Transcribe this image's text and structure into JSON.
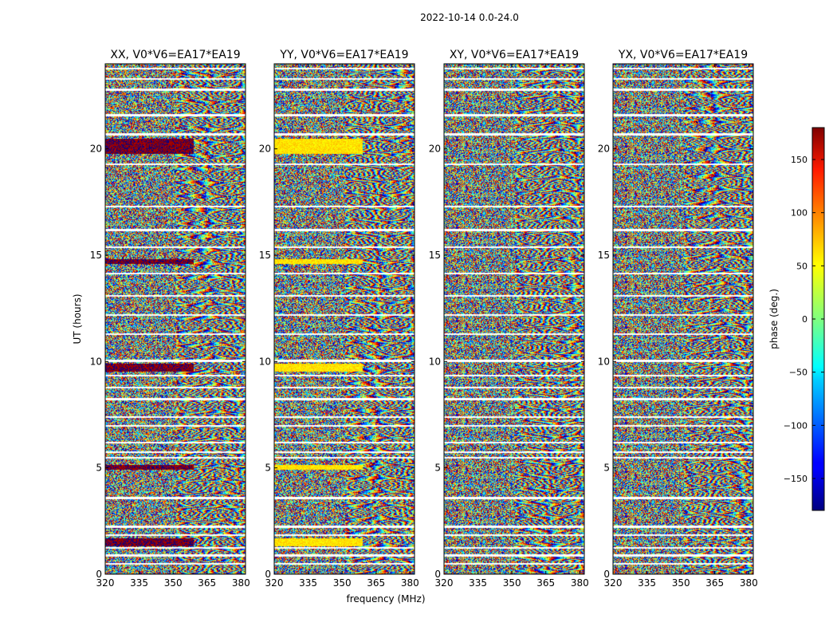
{
  "figure": {
    "suptitle": "2022-10-14 0.0-24.0"
  },
  "chart_data": {
    "type": "heatmap",
    "title": "2022-10-14 0.0-24.0",
    "xlabel": "frequency (MHz)",
    "ylabel": "UT (hours)",
    "xlim": [
      320,
      382
    ],
    "ylim": [
      0,
      24
    ],
    "xticks": [
      320,
      335,
      350,
      365,
      380
    ],
    "yticks": [
      0,
      5,
      10,
      15,
      20
    ],
    "panels": [
      {
        "title": "XX, V0*V6=EA17*EA19",
        "coherent_phase_deg": 175
      },
      {
        "title": "YY, V0*V6=EA17*EA19",
        "coherent_phase_deg": 55
      },
      {
        "title": "XY, V0*V6=EA17*EA19",
        "coherent_phase_deg": null
      },
      {
        "title": "YX, V0*V6=EA17*EA19",
        "coherent_phase_deg": null
      }
    ],
    "coherent_hours": [
      [
        19.8,
        20.5
      ],
      [
        14.6,
        14.85
      ],
      [
        9.55,
        9.9
      ],
      [
        4.95,
        5.15
      ],
      [
        1.35,
        1.7
      ]
    ],
    "gap_hours": [
      0.5,
      0.9,
      1.25,
      1.85,
      2.25,
      3.6,
      5.5,
      5.75,
      6.2,
      7.0,
      7.4,
      8.25,
      8.8,
      9.35,
      10.05,
      11.3,
      12.2,
      13.1,
      14.15,
      15.4,
      16.2,
      17.3,
      19.3,
      20.7,
      21.6,
      22.8,
      23.3,
      23.8
    ],
    "colorbar": {
      "label": "phase (deg.)",
      "range": [
        -180,
        180
      ],
      "ticks": [
        -150,
        -100,
        -50,
        0,
        50,
        100,
        150
      ],
      "tick_labels": [
        "−150",
        "−100",
        "−50",
        "0",
        "50",
        "100",
        "150"
      ],
      "colormap": "jet"
    }
  }
}
